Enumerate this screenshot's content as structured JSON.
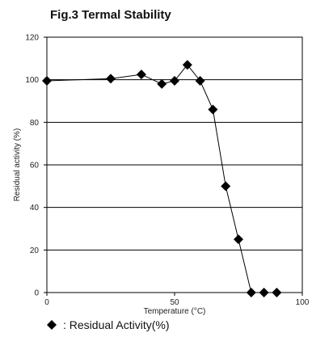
{
  "chart_data": {
    "type": "line",
    "title": "Fig.3 Termal Stability",
    "xlabel": "Temperature (°C)",
    "ylabel": "Residual activity (%)",
    "xlim": [
      0,
      100
    ],
    "ylim": [
      0,
      120
    ],
    "x_ticks": [
      "0",
      "50",
      "100"
    ],
    "y_ticks": [
      "0",
      "20",
      "40",
      "60",
      "80",
      "100",
      "120"
    ],
    "grid": "horizontal",
    "legend_position": "bottom-left",
    "series": [
      {
        "name": ": Residual Activity(%)",
        "marker": "diamond",
        "color": "#000000",
        "x": [
          0,
          25,
          37,
          45,
          50,
          55,
          60,
          65,
          70,
          75,
          80,
          85,
          90
        ],
        "y": [
          99.5,
          100.5,
          102.5,
          98,
          99.5,
          107,
          99.5,
          86,
          50,
          25,
          0,
          0,
          0
        ]
      }
    ]
  }
}
